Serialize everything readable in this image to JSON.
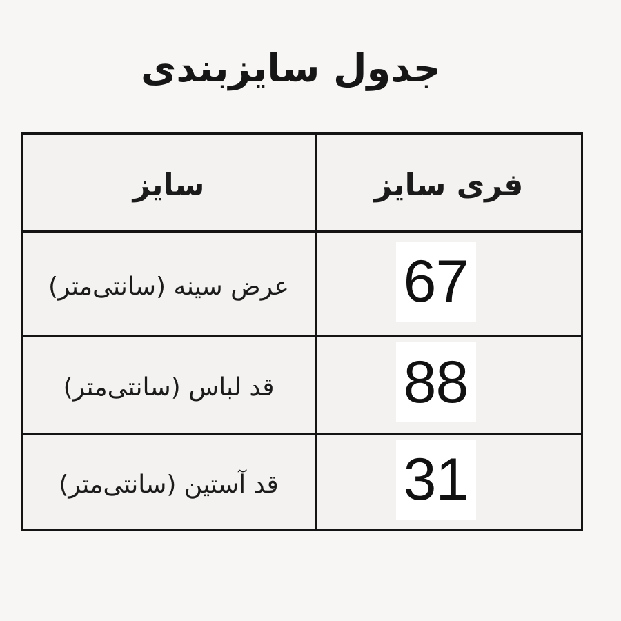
{
  "chart_data": {
    "type": "table",
    "title": "جدول سایزبندی",
    "columns": [
      "سایز",
      "فری سایز"
    ],
    "rows": [
      [
        "عرض سینه (سانتی‌متر)",
        67
      ],
      [
        "قد لباس (سانتی‌متر)",
        88
      ],
      [
        "قد آستین (سانتی‌متر)",
        31
      ]
    ],
    "layout": "rtl, labels in left column, values in right column, values on white patches"
  },
  "colors": {
    "page_background": "#f7f6f4",
    "cell_background": "#f3f2f0",
    "grid_border": "#141414",
    "value_patch": "#ffffff",
    "text": "#1b1b1b"
  }
}
